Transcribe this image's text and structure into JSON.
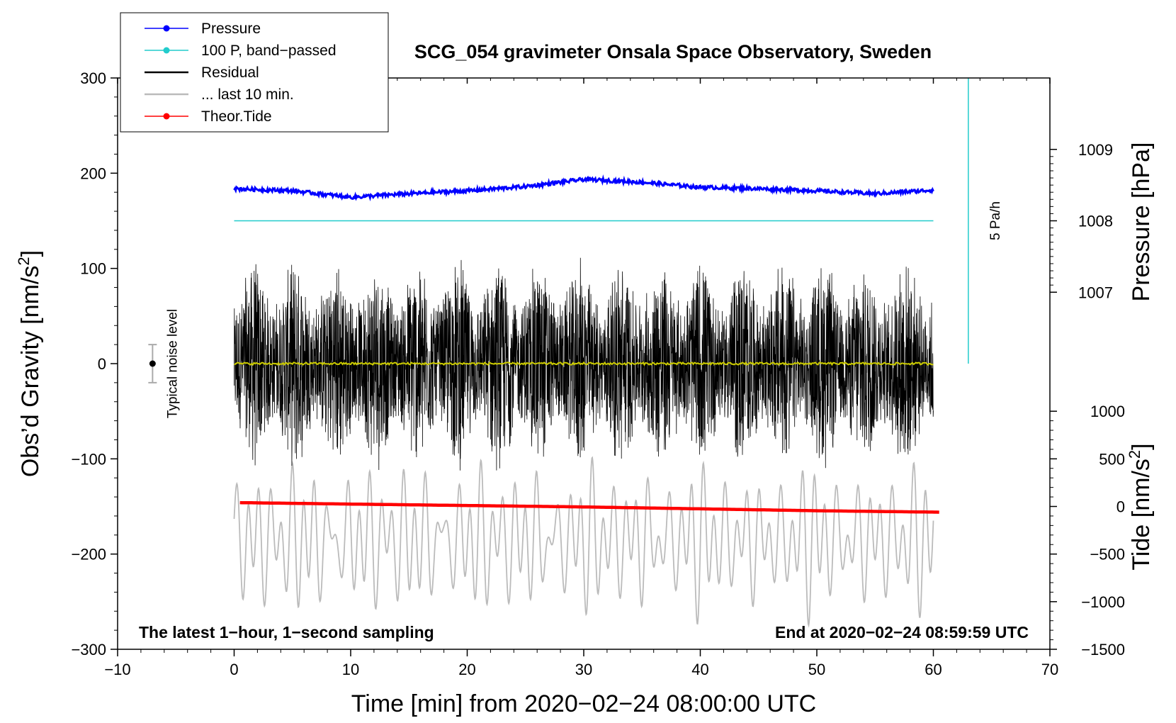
{
  "chart_data": {
    "type": "line",
    "title": "SCG_054 gravimeter Onsala Space Observatory, Sweden",
    "xlabel": "Time [min] from 2020−02−24 08:00:00 UTC",
    "ylabel_left": "Obs’d Gravity [nm/s",
    "ylabel_left_sup": "2",
    "ylabel_left_end": "]",
    "ylabel_right_pressure": "Pressure [hPa]",
    "ylabel_right_tide": "Tide [nm/s",
    "ylabel_right_tide_sup": "2",
    "ylabel_right_tide_end": "]",
    "xlim": [
      -10,
      70
    ],
    "ylim": [
      -300,
      300
    ],
    "x_ticks": [
      "−10",
      "0",
      "10",
      "20",
      "30",
      "40",
      "50",
      "60",
      "70"
    ],
    "y_ticks": [
      "−300",
      "−200",
      "−100",
      "0",
      "100",
      "200",
      "300"
    ],
    "pressure_axis": {
      "ticks": [
        "1009",
        "1008",
        "1007"
      ],
      "tick_values": [
        1009,
        1008,
        1007
      ],
      "gravity_equivalent": [
        225,
        150,
        75
      ]
    },
    "tide_axis": {
      "ticks": [
        "1000",
        "500",
        "0",
        "−500",
        "−1000",
        "−1500"
      ],
      "tick_values": [
        1000,
        500,
        0,
        -500,
        -1000,
        -1500
      ],
      "gravity_equivalent": [
        -50,
        -100,
        -150,
        -200,
        -250,
        -300
      ]
    },
    "legend": [
      {
        "label": "Pressure",
        "color": "#0000ff",
        "style": "line-dot"
      },
      {
        "label": "100 P, band−passed",
        "color": "#22cccc",
        "style": "line-dot"
      },
      {
        "label": "Residual",
        "color": "#000000",
        "style": "line"
      },
      {
        "label": "... last 10 min.",
        "color": "#bbbbbb",
        "style": "line"
      },
      {
        "label": "Theor.Tide",
        "color": "#ff0000",
        "style": "line-dot"
      }
    ],
    "series": [
      {
        "name": "Pressure",
        "color": "#0000ff",
        "unit": "hPa",
        "x": [
          0,
          5,
          10,
          15,
          20,
          25,
          30,
          35,
          40,
          45,
          50,
          55,
          60
        ],
        "values": [
          1008.45,
          1008.42,
          1008.33,
          1008.38,
          1008.42,
          1008.48,
          1008.58,
          1008.54,
          1008.47,
          1008.45,
          1008.42,
          1008.38,
          1008.43
        ]
      },
      {
        "name": "100 P, band-passed",
        "color": "#22cccc",
        "x": [
          0,
          60
        ],
        "values": [
          150,
          150
        ]
      },
      {
        "name": "Residual",
        "color": "#000000",
        "x_range": [
          0,
          60
        ],
        "amplitude_range": [
          -130,
          125
        ],
        "mean": 0
      },
      {
        "name": "Residual smoothed",
        "color": "#cccc00",
        "x": [
          0,
          60
        ],
        "values": [
          0,
          0
        ]
      },
      {
        "name": "... last 10 min.",
        "color": "#bbbbbb",
        "unit": "nm/s² (tide axis)",
        "x_range": [
          0,
          60
        ],
        "amplitude_range": [
          -1450,
          600
        ]
      },
      {
        "name": "Theor.Tide",
        "color": "#ff0000",
        "unit": "nm/s²",
        "x": [
          0.5,
          10,
          20,
          30,
          40,
          50,
          60.5
        ],
        "values": [
          40,
          25,
          10,
          -5,
          -25,
          -45,
          -60
        ]
      }
    ],
    "annotations": {
      "noise_label": "Typical noise level",
      "noise_bar": {
        "x": -7,
        "center": 0,
        "half_range": 20
      },
      "rate_label": "5 Pa/h",
      "rate_line": {
        "x": 63,
        "y_from": 0,
        "y_to": 300
      },
      "bottom_left": "The latest 1−hour, 1−second sampling",
      "bottom_right": "End at 2020−02−24 08:59:59 UTC"
    }
  }
}
